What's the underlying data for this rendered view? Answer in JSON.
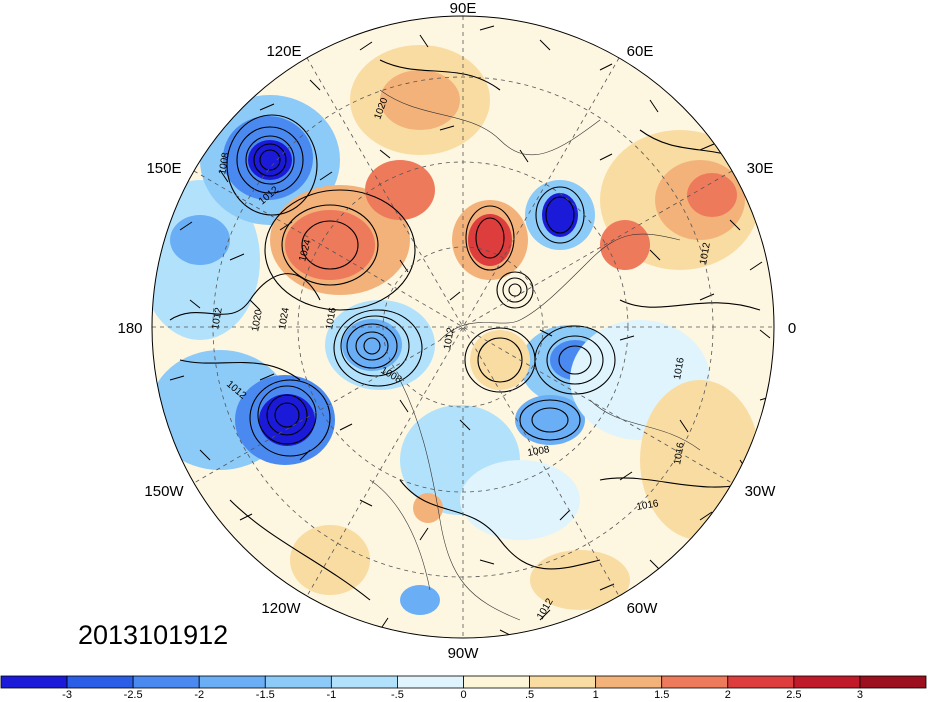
{
  "map": {
    "projection": "north polar stereographic",
    "longitude_labels": {
      "top": "90E",
      "upper_left": "120E",
      "upper_right": "60E",
      "left_upper": "150E",
      "right_upper": "30E",
      "left": "180",
      "right": "0",
      "left_lower": "150W",
      "right_lower": "30W",
      "lower_left": "120W",
      "lower_right": "60W",
      "bottom": "90W"
    },
    "contour_labels": [
      "1020",
      "1008",
      "1012",
      "1024",
      "1012",
      "1020",
      "1024",
      "1016",
      "1012",
      "1008",
      "1012",
      "1008",
      "1016",
      "1016",
      "1012",
      "1012",
      "1016"
    ]
  },
  "timestamp": "2013101912",
  "colorbar": {
    "tick_labels": [
      "-3",
      "-2.5",
      "-2",
      "-1.5",
      "-1",
      "-.5",
      "0",
      ".5",
      "1",
      "1.5",
      "2",
      "2.5",
      "3"
    ],
    "colors": [
      "#1a1ad8",
      "#2a5ee6",
      "#4a8af0",
      "#6aaef5",
      "#8ccaf8",
      "#b2e2fb",
      "#dff4fd",
      "#fdf5d8",
      "#f9dca2",
      "#f4b27b",
      "#ee7a5c",
      "#dd3d3d",
      "#c01a2a",
      "#9b0f1f"
    ]
  }
}
